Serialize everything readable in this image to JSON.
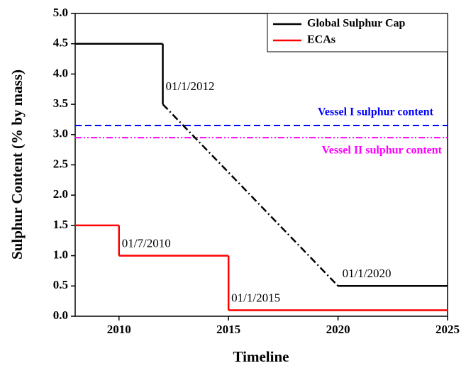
{
  "chart_data": {
    "type": "line",
    "x_label": "Timeline",
    "y_label": "Sulphur Content (% by mass)",
    "xlim": [
      2008,
      2025
    ],
    "xticks": [
      2010,
      2015,
      2020,
      2025
    ],
    "ylim": [
      0,
      5
    ],
    "yticks": [
      {
        "value": 0,
        "label": "0.0"
      },
      {
        "value": 0.5,
        "label": "0.5"
      },
      {
        "value": 1,
        "label": "1.0"
      },
      {
        "value": 1.5,
        "label": "1.5"
      },
      {
        "value": 2,
        "label": "2.0"
      },
      {
        "value": 2.5,
        "label": "2.5"
      },
      {
        "value": 3,
        "label": "3.0"
      },
      {
        "value": 3.5,
        "label": "3.5"
      },
      {
        "value": 4,
        "label": "4.0"
      },
      {
        "value": 4.5,
        "label": "4.5"
      },
      {
        "value": 5,
        "label": "5.0"
      }
    ],
    "legend": "top-right",
    "series": [
      {
        "name": "Global Sulphur Cap",
        "color": "#000000",
        "x": [
          2008,
          2012,
          2012,
          2020,
          2025
        ],
        "values": [
          4.5,
          4.5,
          3.5,
          0.5,
          0.5
        ],
        "segment_styles": [
          "solid",
          "solid",
          "dashdot",
          "solid"
        ]
      },
      {
        "name": "ECAs",
        "color": "#ff0000",
        "x": [
          2008,
          2010,
          2010,
          2015,
          2015,
          2025
        ],
        "values": [
          1.5,
          1.5,
          1,
          1,
          0.1,
          0.1
        ],
        "segment_styles": [
          "solid",
          "solid",
          "solid",
          "solid",
          "solid"
        ]
      }
    ],
    "reference_lines": [
      {
        "label": "Vessel I sulphur content",
        "value": 3.15,
        "color": "#0000ff",
        "style": "dashed"
      },
      {
        "label": "Vessel II sulphur content",
        "value": 2.95,
        "color": "#ff00ff",
        "style": "dashdotdot"
      }
    ],
    "annotations": [
      "01/1/2012",
      "01/7/2010",
      "01/1/2015",
      "01/1/2020"
    ]
  }
}
